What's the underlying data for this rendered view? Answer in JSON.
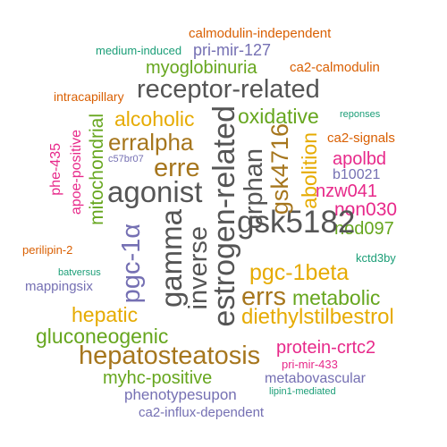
{
  "colors": {
    "orange": "#d95f02",
    "green": "#1b9e77",
    "purple": "#7570b3",
    "olive": "#66a61e",
    "magenta": "#e7298a",
    "gray": "#555555",
    "gold": "#e6ab02",
    "brown": "#a6761d"
  },
  "words": {
    "calmodulin_independent": "calmodulin-independent",
    "medium_induced": "medium-induced",
    "pri_mir_127": "pri-mir-127",
    "myoglobinuria": "myoglobinuria",
    "ca2_calmodulin": "ca2-calmodulin",
    "intracapillary": "intracapillary",
    "receptor_related": "receptor-related",
    "alcoholic": "alcoholic",
    "oxidative": "oxidative",
    "reponses": "reponses",
    "erralpha": "erralpha",
    "ca2_signals": "ca2-signals",
    "c57br07": "c57br07",
    "apolbd": "apolbd",
    "erre": "erre",
    "b10021": "b10021",
    "agonist": "agonist",
    "nzw041": "nzw041",
    "non030": "non030",
    "nod097": "nod097",
    "gsk5182": "gsk5182",
    "perilipin_2": "perilipin-2",
    "kctd3by": "kctd3by",
    "batversus": "batversus",
    "pgc_1beta": "pgc-1beta",
    "mappingsix": "mappingsix",
    "errs": "errs",
    "metabolic": "metabolic",
    "hepatic": "hepatic",
    "diethylstilbestrol": "diethylstilbestrol",
    "gluconeogenic": "gluconeogenic",
    "protein_crtc2": "protein-crtc2",
    "hepatosteatosis": "hepatosteatosis",
    "pri_mir_433": "pri-mir-433",
    "myhc_positive": "myhc-positive",
    "metabovascular": "metabovascular",
    "phenotypesupon": "phenotypesupon",
    "lipin1_mediated": "lipin1-mediated",
    "ca2_influx_dependent": "ca2-influx-dependent",
    "phe_435": "phe-435",
    "apoe_positive": "apoe-positive",
    "mitochondrial": "mitochondrial",
    "pgc_1a": "pgc-1α",
    "gamma": "gamma",
    "inverse": "inverse",
    "estrogen_related": "estrogen-related",
    "orphan": "orphan",
    "gsk4716": "gsk4716",
    "abolition": "abolition"
  }
}
